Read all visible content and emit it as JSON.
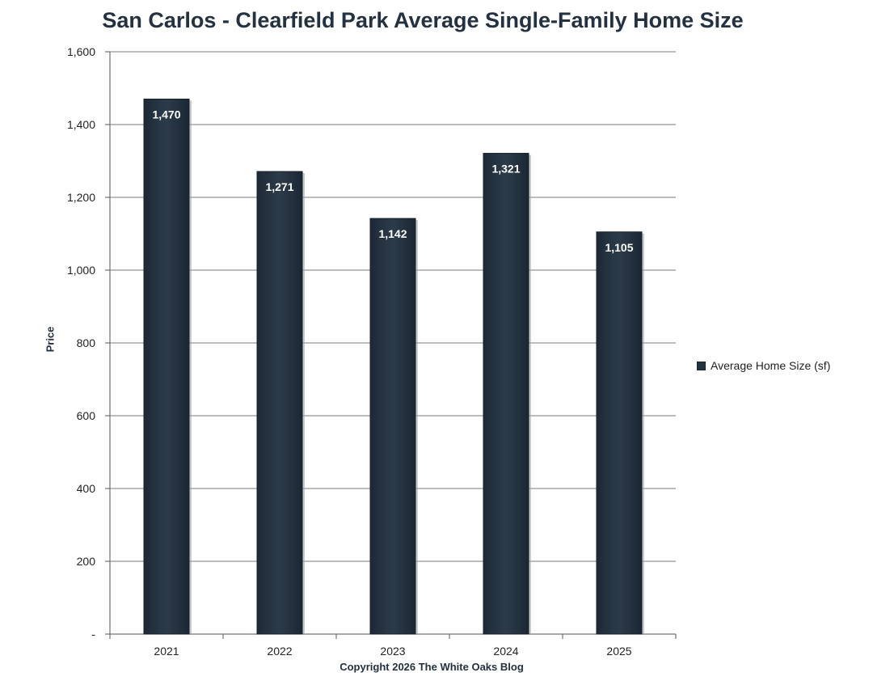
{
  "chart_data": {
    "type": "bar",
    "title": "San Carlos - Clearfield Park Average Single-Family Home Size",
    "xlabel": "Copyright 2026 The White  Oaks Blog",
    "ylabel": "Price",
    "categories": [
      "2021",
      "2022",
      "2023",
      "2024",
      "2025"
    ],
    "series": [
      {
        "name": "Average Home Size (sf)",
        "values": [
          1470,
          1271,
          1142,
          1321,
          1105
        ],
        "labels": [
          "1,470",
          "1,271",
          "1,142",
          "1,321",
          "1,105"
        ],
        "color": "#253341"
      }
    ],
    "ylim": [
      0,
      1600
    ],
    "yticks": [
      0,
      200,
      400,
      600,
      800,
      1000,
      1200,
      1400,
      1600
    ],
    "ytick_labels": [
      "-",
      "200",
      "400",
      "600",
      "800",
      "1,000",
      "1,200",
      "1,400",
      "1,600"
    ],
    "grid": true,
    "legend_position": "right"
  }
}
